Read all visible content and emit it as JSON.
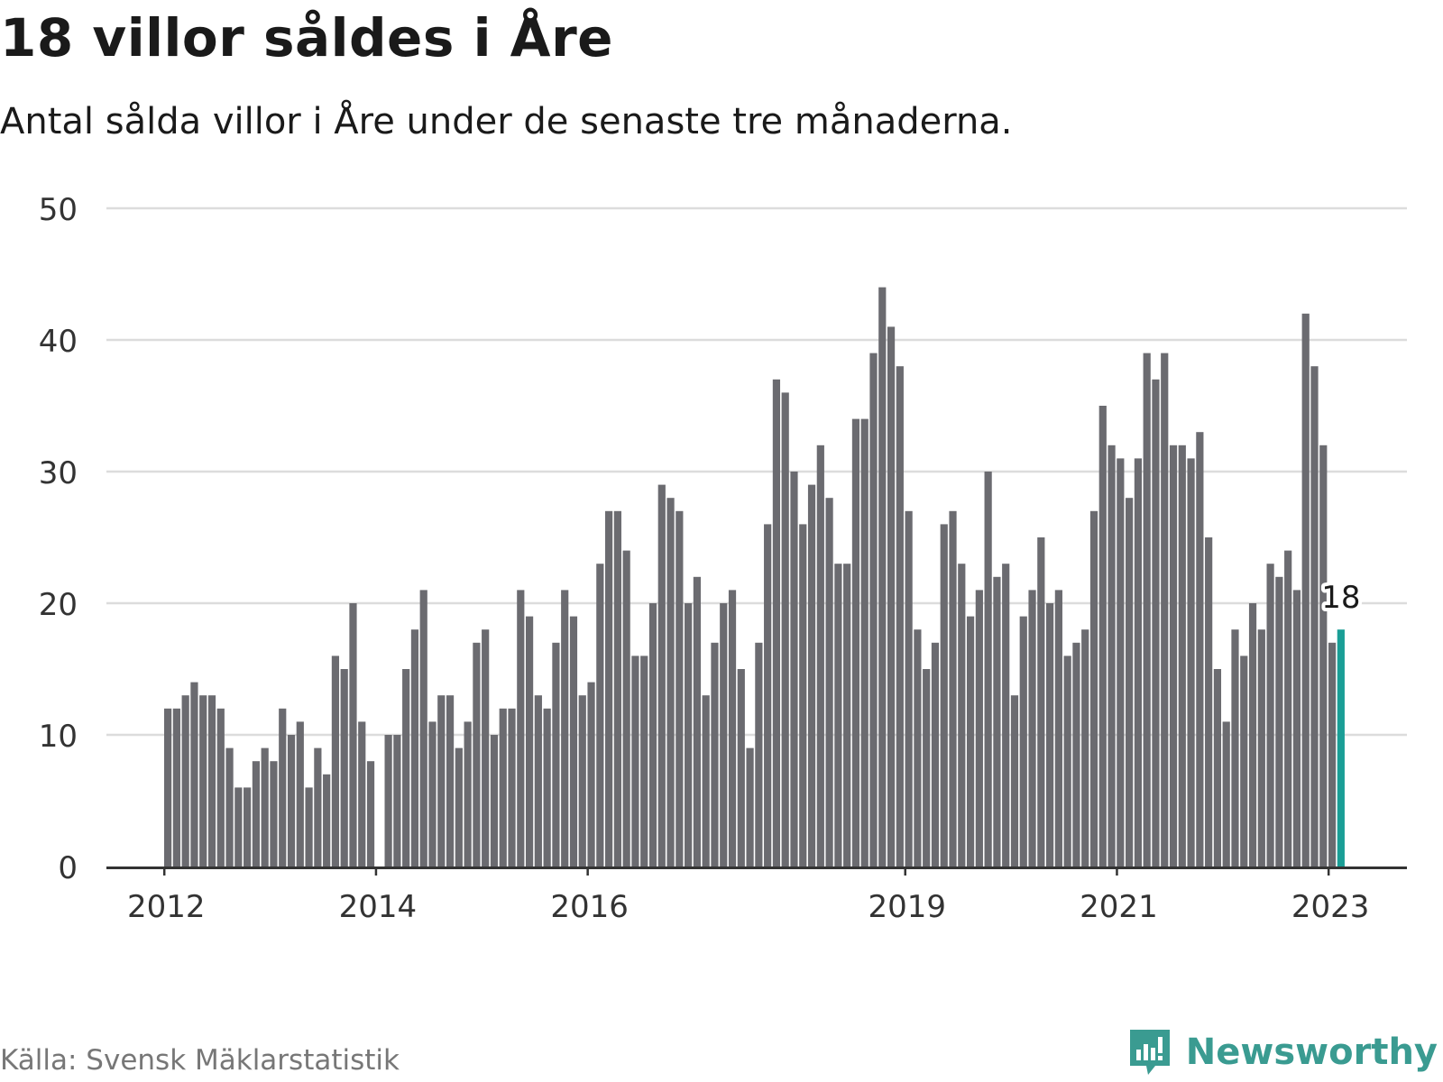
{
  "header": {
    "title": "18 villor såldes i Åre",
    "subtitle": "Antal sålda villor i Åre under de senaste tre månaderna."
  },
  "footer": {
    "source": "Källa: Svensk Mäklarstatistik",
    "brand": "Newsworthy",
    "brand_icon": "newsworthy-logo-icon"
  },
  "colors": {
    "bar": "#6b6b70",
    "highlight": "#1a9e96",
    "grid": "#dcdcdc",
    "axis": "#333333",
    "brand": "#3a9b91"
  },
  "chart_data": {
    "type": "bar",
    "title": "18 villor såldes i Åre",
    "subtitle": "Antal sålda villor i Åre under de senaste tre månaderna.",
    "xlabel": "",
    "ylabel": "",
    "ylim": [
      0,
      50
    ],
    "yticks": [
      0,
      10,
      20,
      30,
      40,
      50
    ],
    "grid": true,
    "start": "2012-01",
    "xtick_labels": [
      "2012",
      "2014",
      "2016",
      "2019",
      "2021",
      "2023"
    ],
    "xtick_positions": [
      0,
      24,
      48,
      84,
      108,
      132
    ],
    "values": [
      12,
      12,
      13,
      14,
      13,
      13,
      12,
      9,
      6,
      6,
      8,
      9,
      8,
      12,
      10,
      11,
      6,
      9,
      7,
      16,
      15,
      20,
      11,
      8,
      null,
      10,
      10,
      15,
      18,
      21,
      11,
      13,
      13,
      9,
      11,
      17,
      18,
      10,
      12,
      12,
      21,
      19,
      13,
      12,
      17,
      21,
      19,
      13,
      14,
      23,
      27,
      27,
      24,
      16,
      16,
      20,
      29,
      28,
      27,
      20,
      22,
      13,
      17,
      20,
      21,
      15,
      9,
      17,
      26,
      37,
      36,
      30,
      26,
      29,
      32,
      28,
      23,
      23,
      34,
      34,
      39,
      44,
      41,
      38,
      27,
      18,
      15,
      17,
      26,
      27,
      23,
      19,
      21,
      30,
      22,
      23,
      13,
      19,
      21,
      25,
      20,
      21,
      16,
      17,
      18,
      27,
      35,
      32,
      31,
      28,
      31,
      39,
      37,
      39,
      32,
      32,
      31,
      33,
      25,
      15,
      11,
      18,
      16,
      20,
      18,
      23,
      22,
      24,
      21,
      42,
      38,
      32,
      17,
      18
    ],
    "highlight_index": 133,
    "annotation": "18"
  }
}
